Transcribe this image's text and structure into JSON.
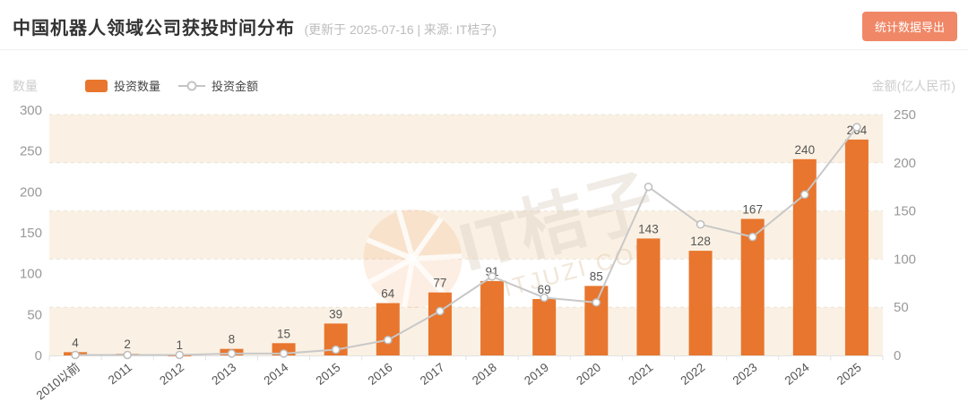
{
  "header": {
    "title": "中国机器人领域公司获投时间分布",
    "subtitle": "(更新于 2025-07-16 | 来源: IT桔子)",
    "export_button": "统计数据导出"
  },
  "axes": {
    "left_name": "数量",
    "right_name": "金额(亿人民币)",
    "left_ticks": [
      0,
      50,
      100,
      150,
      200,
      250,
      300
    ],
    "right_ticks": [
      0,
      50,
      100,
      150,
      200,
      250
    ]
  },
  "legend": [
    {
      "label": "投资数量",
      "type": "bar"
    },
    {
      "label": "投资金额",
      "type": "line"
    }
  ],
  "watermark": {
    "text": "IT桔子",
    "subtext": "ITJUZI.COM"
  },
  "colors": {
    "bar": "#e8762e",
    "line": "#c8c8c8",
    "marker_stroke": "#bebebe",
    "stripe_cream": "#faf1e4",
    "grid_dash": "#e3d9cb",
    "axis_line": "#e2e2e2",
    "tick_label": "#999999",
    "value_label": "#555555",
    "x_label": "#555555",
    "button": "#f08767"
  },
  "chart_data": {
    "type": "bar",
    "title": "中国机器人领域公司获投时间分布",
    "categories": [
      "2010以前",
      "2011",
      "2012",
      "2013",
      "2014",
      "2015",
      "2016",
      "2017",
      "2018",
      "2019",
      "2020",
      "2021",
      "2022",
      "2023",
      "2024",
      "2025"
    ],
    "series": [
      {
        "name": "投资数量",
        "type": "bar",
        "axis": "left",
        "values": [
          4,
          2,
          1,
          8,
          15,
          39,
          64,
          77,
          91,
          69,
          85,
          143,
          128,
          167,
          240,
          264
        ]
      },
      {
        "name": "投资金额",
        "type": "line",
        "axis": "right",
        "values": [
          0.5,
          0.5,
          0.5,
          2,
          2,
          6,
          16,
          46,
          82,
          60,
          55,
          175,
          136,
          123,
          167,
          237
        ]
      }
    ],
    "left_axis": {
      "label": "数量",
      "min": 0,
      "max": 300
    },
    "right_axis": {
      "label": "金额(亿人民币)",
      "min": 0,
      "max": 250
    },
    "legend_position": "top-left",
    "grid": "horizontal-stripes"
  }
}
